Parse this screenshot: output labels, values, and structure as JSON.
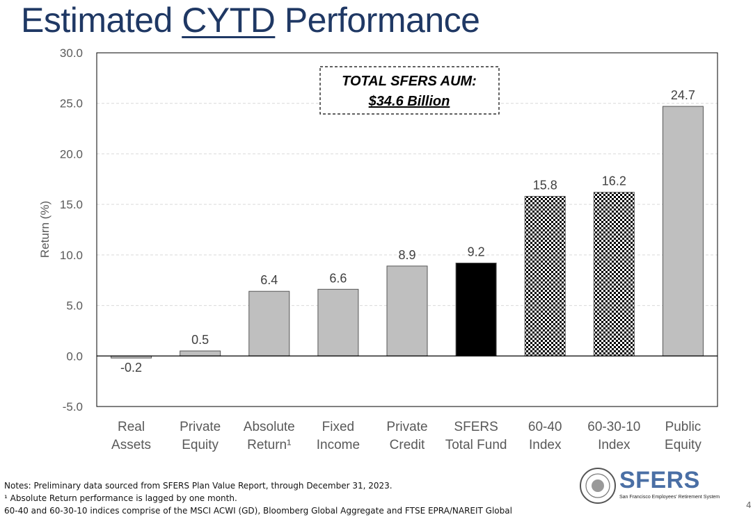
{
  "title": {
    "prefix": "Estimated ",
    "underlined": "CYTD",
    "suffix": " Performance"
  },
  "chart_data": {
    "type": "bar",
    "categories": [
      [
        "Real",
        "Assets"
      ],
      [
        "Private",
        "Equity"
      ],
      [
        "Absolute",
        "Return¹"
      ],
      [
        "Fixed",
        "Income"
      ],
      [
        "Private",
        "Credit"
      ],
      [
        "SFERS",
        "Total Fund"
      ],
      [
        "60-40",
        "Index"
      ],
      [
        "60-30-10",
        "Index"
      ],
      [
        "Public",
        "Equity"
      ]
    ],
    "values": [
      -0.2,
      0.5,
      6.4,
      6.6,
      8.9,
      9.2,
      15.8,
      16.2,
      24.7
    ],
    "data_labels": [
      "-0.2",
      "0.5",
      "6.4",
      "6.6",
      "8.9",
      "9.2",
      "15.8",
      "16.2",
      "24.7"
    ],
    "bar_styles": [
      "gray",
      "gray",
      "gray",
      "gray",
      "gray",
      "black",
      "checker",
      "checker",
      "gray"
    ],
    "colors": {
      "gray": "#bfbfbf",
      "black": "#000000",
      "axis": "#000000",
      "grid": "#d9d9d9"
    },
    "ylabel": "Return (%)",
    "xlabel": "",
    "ylim": [
      -5.0,
      30.0
    ],
    "yticks": [
      "-5.0",
      "0.0",
      "5.0",
      "10.0",
      "15.0",
      "20.0",
      "25.0",
      "30.0"
    ],
    "grid": "horizontal dashed",
    "annotation": {
      "line1": "TOTAL SFERS AUM:",
      "line2": "$34.6 Billion"
    }
  },
  "notes": {
    "line1": "Notes: Preliminary data sourced from SFERS Plan Value Report, through December 31, 2023.",
    "line2": "¹ Absolute Return performance is lagged by one month.",
    "line3": "60-40 and 60-30-10 indices comprise of the MSCI ACWI (GD), Bloomberg Global Aggregate and FTSE EPRA/NAREIT Global"
  },
  "logo": {
    "name": "SFERS",
    "tagline": "San Francisco Employees' Retirement System"
  },
  "page_number": "4"
}
